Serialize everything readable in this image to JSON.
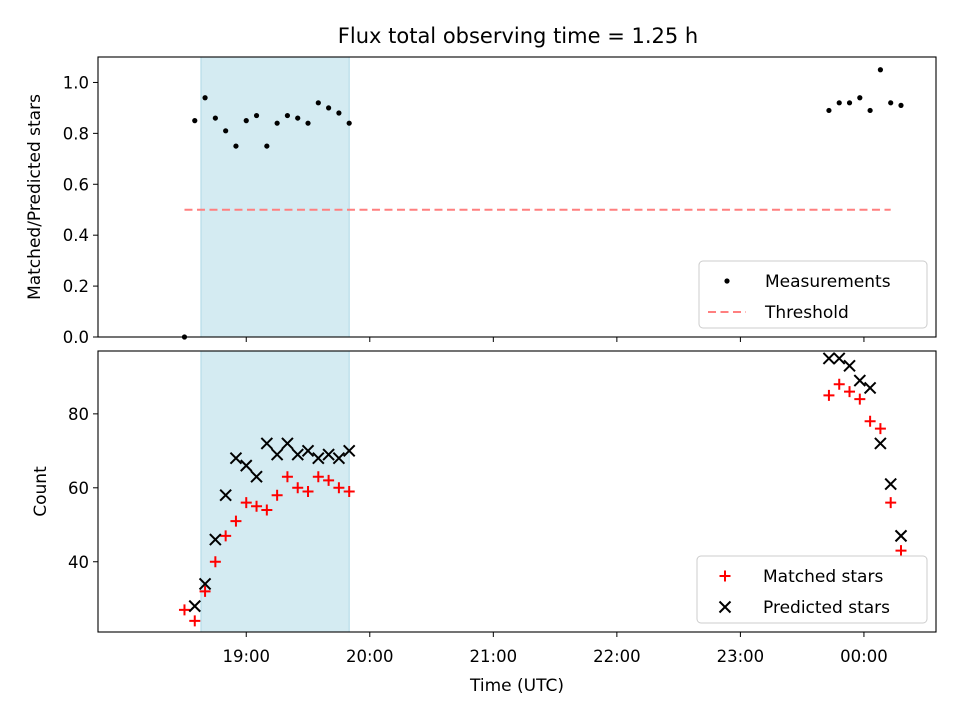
{
  "title": "Flux total observing time = 1.25 h",
  "chart_data": [
    {
      "type": "scatter",
      "ylabel": "Matched/Predicted stars",
      "ylim": [
        0.0,
        1.1
      ],
      "yticks": [
        0.0,
        0.2,
        0.4,
        0.6,
        0.8,
        1.0
      ],
      "ytick_labels": [
        "0.0",
        "0.2",
        "0.4",
        "0.6",
        "0.8",
        "1.0"
      ],
      "shaded_region": {
        "x_start": "18:38",
        "x_end": "19:50",
        "color": "#add8e6"
      },
      "threshold": {
        "name": "Threshold",
        "y": 0.5,
        "x_start": "18:30",
        "x_end": "00:13",
        "color": "#ff7f7f",
        "style": "dashed"
      },
      "series": [
        {
          "name": "Measurements",
          "marker": "dot",
          "color": "#000000",
          "x": [
            "18:30",
            "18:35",
            "18:40",
            "18:45",
            "18:50",
            "18:55",
            "19:00",
            "19:05",
            "19:10",
            "19:15",
            "19:20",
            "19:25",
            "19:30",
            "19:35",
            "19:40",
            "19:45",
            "19:50",
            "23:43",
            "23:48",
            "23:53",
            "23:58",
            "00:03",
            "00:08",
            "00:13",
            "00:18"
          ],
          "y": [
            0.0,
            0.85,
            0.94,
            0.86,
            0.81,
            0.75,
            0.85,
            0.87,
            0.75,
            0.84,
            0.87,
            0.86,
            0.84,
            0.92,
            0.9,
            0.88,
            0.84,
            0.89,
            0.92,
            0.92,
            0.94,
            0.89,
            1.05,
            0.92,
            0.91
          ]
        }
      ],
      "legend": {
        "placement": "lower right",
        "entries": [
          "Measurements",
          "Threshold"
        ]
      }
    },
    {
      "type": "scatter",
      "xlabel": "Time (UTC)",
      "ylabel": "Count",
      "ylim": [
        21,
        97
      ],
      "yticks": [
        40,
        60,
        80
      ],
      "ytick_labels": [
        "40",
        "60",
        "80"
      ],
      "xticks": [
        "19:00",
        "20:00",
        "21:00",
        "22:00",
        "23:00",
        "00:00"
      ],
      "shaded_region": {
        "x_start": "18:38",
        "x_end": "19:50",
        "color": "#add8e6"
      },
      "series": [
        {
          "name": "Matched stars",
          "marker": "plus",
          "color": "#ff0000",
          "x": [
            "18:30",
            "18:35",
            "18:40",
            "18:45",
            "18:50",
            "18:55",
            "19:00",
            "19:05",
            "19:10",
            "19:15",
            "19:20",
            "19:25",
            "19:30",
            "19:35",
            "19:40",
            "19:45",
            "19:50",
            "23:43",
            "23:48",
            "23:53",
            "23:58",
            "00:03",
            "00:08",
            "00:13",
            "00:18"
          ],
          "y": [
            27,
            24,
            32,
            40,
            47,
            51,
            56,
            55,
            54,
            58,
            63,
            60,
            59,
            63,
            62,
            60,
            59,
            85,
            88,
            86,
            84,
            78,
            76,
            56,
            43
          ]
        },
        {
          "name": "Predicted stars",
          "marker": "x",
          "color": "#000000",
          "x": [
            "18:35",
            "18:40",
            "18:45",
            "18:50",
            "18:55",
            "19:00",
            "19:05",
            "19:10",
            "19:15",
            "19:20",
            "19:25",
            "19:30",
            "19:35",
            "19:40",
            "19:45",
            "19:50",
            "23:43",
            "23:48",
            "23:53",
            "23:58",
            "00:03",
            "00:08",
            "00:13",
            "00:18"
          ],
          "y": [
            28,
            34,
            46,
            58,
            68,
            66,
            63,
            72,
            69,
            72,
            69,
            70,
            68,
            69,
            68,
            70,
            95,
            95,
            93,
            89,
            87,
            72,
            61,
            47
          ]
        }
      ],
      "legend": {
        "placement": "lower right",
        "entries": [
          "Matched stars",
          "Predicted stars"
        ]
      }
    }
  ]
}
